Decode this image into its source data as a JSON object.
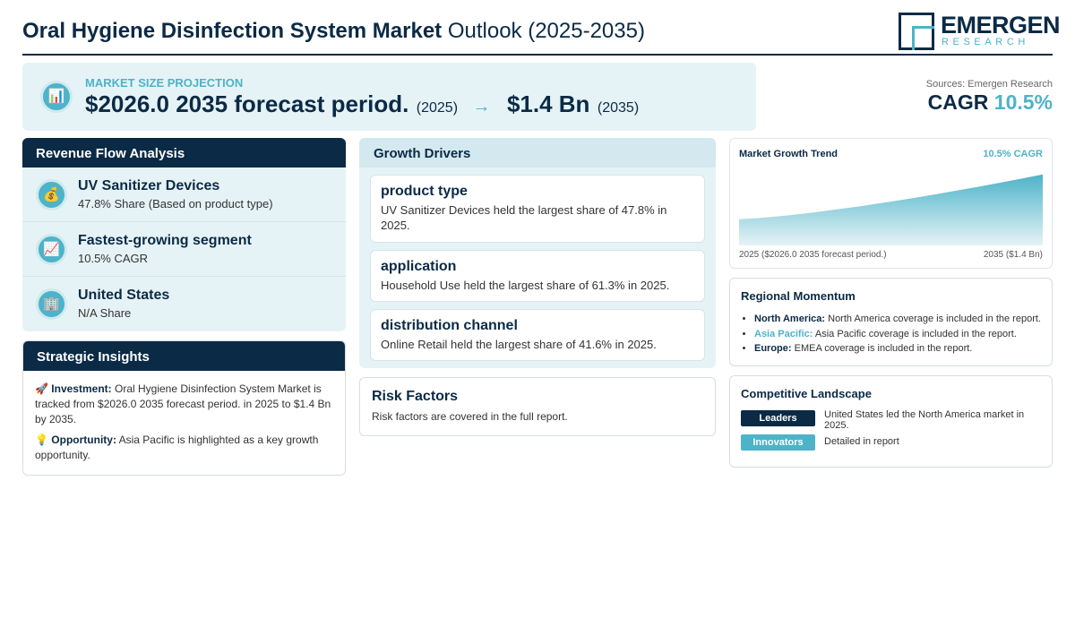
{
  "header": {
    "title_bold": "Oral Hygiene Disinfection System Market",
    "title_rest": "Outlook (2025-2035)",
    "logo_main": "EMERGEN",
    "logo_sub": "RESEARCH"
  },
  "projection": {
    "icon": "bar-chart-icon",
    "label": "MARKET SIZE PROJECTION",
    "start_value": "$2026.0 2035 forecast period.",
    "start_year": "(2025)",
    "arrow": "→",
    "end_value": "$1.4 Bn",
    "end_year": "(2035)"
  },
  "sources": {
    "text": "Sources: Emergen Research",
    "cagr_label": "CAGR",
    "cagr_value": "10.5%"
  },
  "revenue": {
    "title": "Revenue Flow Analysis",
    "items": [
      {
        "icon": "money-bag-icon",
        "glyph": "💰",
        "title": "UV Sanitizer Devices",
        "sub": "47.8% Share (Based on product type)"
      },
      {
        "icon": "trending-up-icon",
        "glyph": "📈",
        "title": "Fastest-growing segment",
        "sub": "10.5% CAGR"
      },
      {
        "icon": "building-icon",
        "glyph": "🏢",
        "title": "United States",
        "sub": "N/A Share"
      }
    ]
  },
  "strategic": {
    "title": "Strategic Insights",
    "investment_icon": "🚀",
    "investment_label": "Investment:",
    "investment_text": "Oral Hygiene Disinfection System Market is tracked from $2026.0 2035 forecast period. in 2025 to $1.4 Bn by 2035.",
    "opportunity_icon": "💡",
    "opportunity_label": "Opportunity:",
    "opportunity_text": "Asia Pacific is highlighted as a key growth opportunity."
  },
  "drivers": {
    "title": "Growth Drivers",
    "items": [
      {
        "title": "product type",
        "text": "UV Sanitizer Devices held the largest share of 47.8% in 2025."
      },
      {
        "title": "application",
        "text": "Household Use held the largest share of 61.3% in 2025."
      },
      {
        "title": "distribution channel",
        "text": "Online Retail held the largest share of 41.6% in 2025."
      }
    ]
  },
  "risk": {
    "title": "Risk Factors",
    "text": "Risk factors are covered in the full report."
  },
  "trend": {
    "title": "Market Growth Trend",
    "cagr": "10.5% CAGR",
    "left_label": "2025 ($2026.0 2035 forecast period.)",
    "right_label": "2035 ($1.4 Bn)",
    "colors": {
      "fill_top": "#4db3c9",
      "fill_bottom": "#e6f3f6"
    }
  },
  "chart_data": {
    "type": "area",
    "title": "Market Growth Trend",
    "x": [
      "2025",
      "2035"
    ],
    "series": [
      {
        "values": [
          1,
          2.7
        ]
      }
    ]
  },
  "region": {
    "title": "Regional Momentum",
    "items": [
      {
        "name": "North America:",
        "text": "North America coverage is included in the report."
      },
      {
        "name": "Asia Pacific:",
        "text": "Asia Pacific coverage is included in the report."
      },
      {
        "name": "Europe:",
        "text": "EMEA coverage is included in the report."
      }
    ]
  },
  "competitive": {
    "title": "Competitive Landscape",
    "rows": [
      {
        "badge": "Leaders",
        "color": "#0b2a45",
        "text": "United States led the North America market in 2025."
      },
      {
        "badge": "Innovators",
        "color": "#4db3c9",
        "text": "Detailed in report"
      }
    ]
  }
}
